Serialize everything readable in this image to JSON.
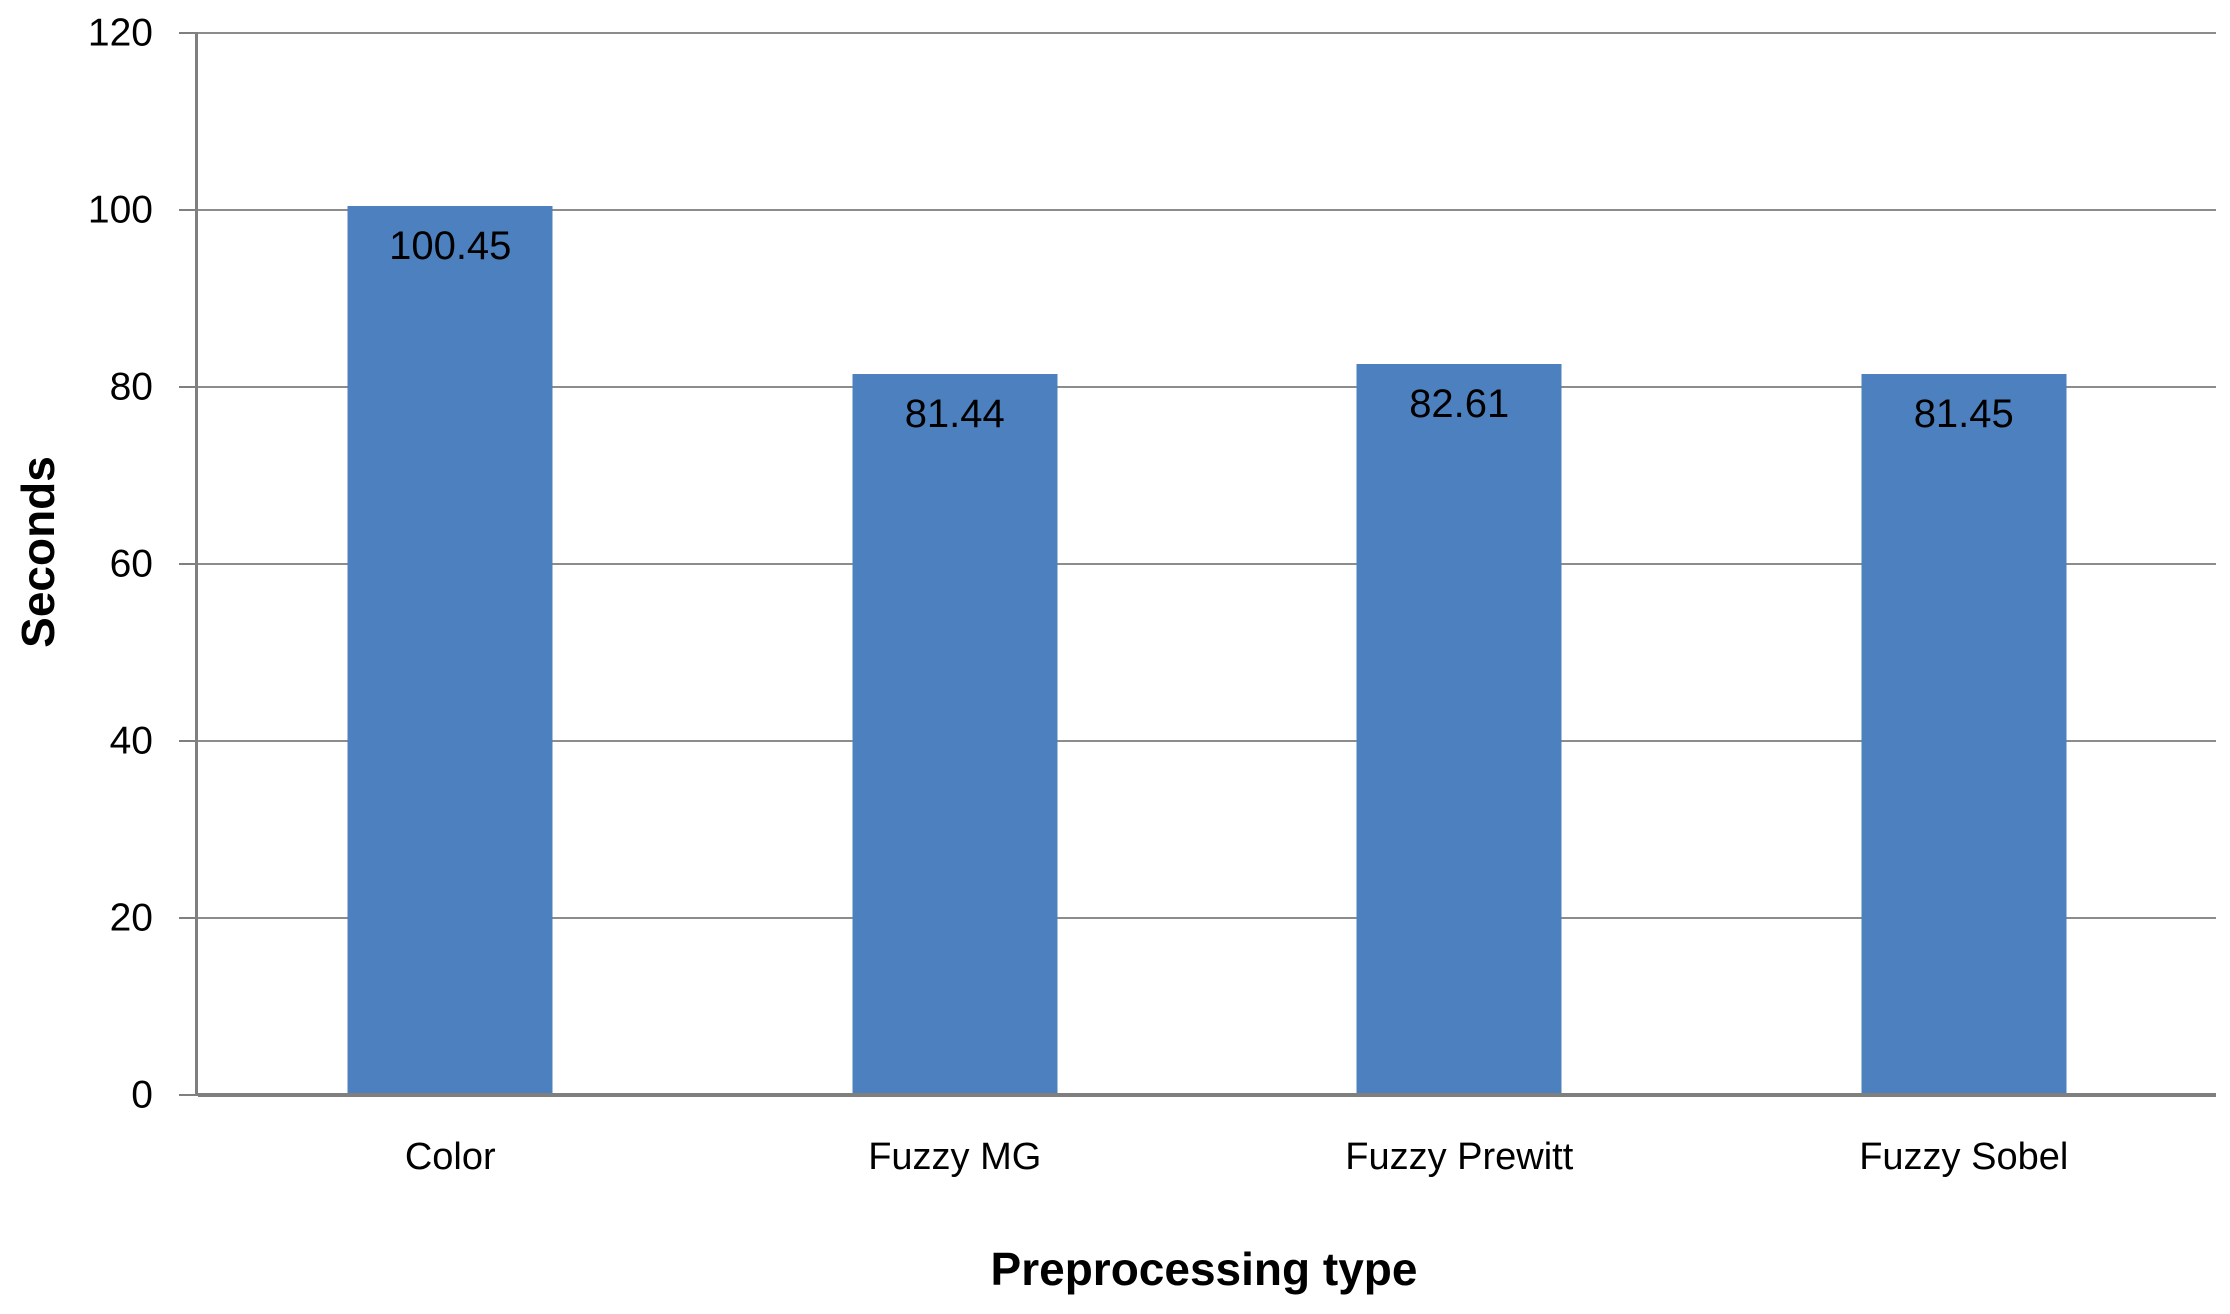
{
  "chart_data": {
    "type": "bar",
    "title": "",
    "xlabel": "Preprocessing type",
    "ylabel": "Seconds",
    "categories": [
      "Color",
      "Fuzzy MG",
      "Fuzzy Prewitt",
      "Fuzzy Sobel"
    ],
    "values": [
      100.45,
      81.44,
      82.61,
      81.45
    ],
    "value_labels": [
      "100.45",
      "81.44",
      "82.61",
      "81.45"
    ],
    "ylim": [
      0,
      120
    ],
    "yticks": [
      0,
      20,
      40,
      60,
      80,
      100,
      120
    ],
    "grid": "horizontal",
    "legend": "none",
    "value_labels_position": "inside-top",
    "colors": {
      "bar": "#4d80be",
      "gridline": "#8c8c8c",
      "axis": "#7f7f7f",
      "text": "#000000",
      "background": "#ffffff"
    }
  }
}
